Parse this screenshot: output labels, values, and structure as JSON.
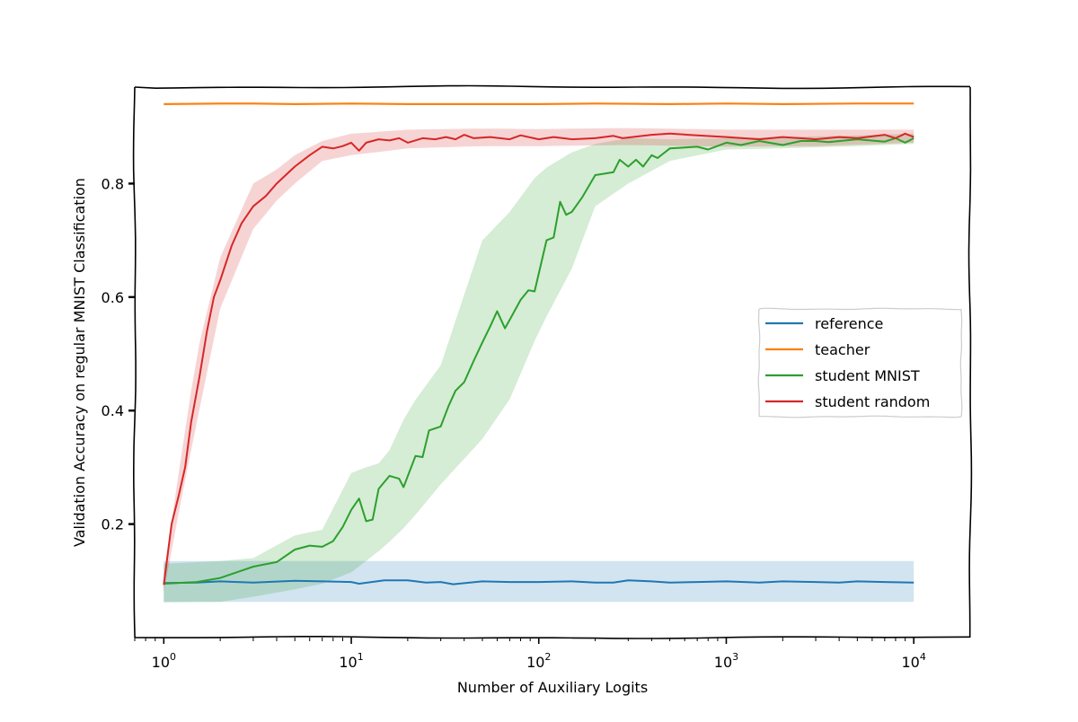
{
  "chart_data": {
    "type": "line",
    "title": "",
    "xlabel": "Number of Auxiliary Logits",
    "ylabel": "Validation Accuracy on regular MNIST Classification",
    "x_scale": "log",
    "xlim": [
      0.7,
      20000
    ],
    "ylim": [
      0.0,
      0.97
    ],
    "x_ticks": [
      1,
      10,
      100,
      1000,
      10000
    ],
    "x_tick_labels": [
      {
        "base": "10",
        "exp": "0"
      },
      {
        "base": "10",
        "exp": "1"
      },
      {
        "base": "10",
        "exp": "2"
      },
      {
        "base": "10",
        "exp": "3"
      },
      {
        "base": "10",
        "exp": "4"
      }
    ],
    "y_ticks": [
      0.2,
      0.4,
      0.6,
      0.8
    ],
    "y_tick_labels": [
      "0.2",
      "0.4",
      "0.6",
      "0.8"
    ],
    "grid": false,
    "legend_position": "center-right",
    "series": [
      {
        "name": "reference",
        "color": "#1f77b4",
        "band_opacity": 0.2,
        "points": [
          [
            1,
            0.096
          ],
          [
            1.5,
            0.097
          ],
          [
            2,
            0.099
          ],
          [
            3,
            0.097
          ],
          [
            5,
            0.1
          ],
          [
            7,
            0.099
          ],
          [
            10,
            0.098
          ],
          [
            11,
            0.095
          ],
          [
            15,
            0.101
          ],
          [
            20,
            0.101
          ],
          [
            25,
            0.097
          ],
          [
            30,
            0.098
          ],
          [
            35,
            0.094
          ],
          [
            50,
            0.099
          ],
          [
            70,
            0.098
          ],
          [
            100,
            0.098
          ],
          [
            150,
            0.099
          ],
          [
            200,
            0.097
          ],
          [
            250,
            0.097
          ],
          [
            300,
            0.101
          ],
          [
            400,
            0.099
          ],
          [
            500,
            0.097
          ],
          [
            700,
            0.098
          ],
          [
            1000,
            0.099
          ],
          [
            1500,
            0.097
          ],
          [
            2000,
            0.099
          ],
          [
            3000,
            0.098
          ],
          [
            4000,
            0.097
          ],
          [
            5000,
            0.099
          ],
          [
            7000,
            0.098
          ],
          [
            10000,
            0.097
          ]
        ],
        "lower": [
          [
            1,
            0.063
          ],
          [
            100,
            0.063
          ],
          [
            10000,
            0.063
          ]
        ],
        "upper": [
          [
            1,
            0.135
          ],
          [
            100,
            0.135
          ],
          [
            10000,
            0.135
          ]
        ]
      },
      {
        "name": "teacher",
        "color": "#ff7f0e",
        "band_opacity": 0.2,
        "points": [
          [
            1,
            0.94
          ],
          [
            2,
            0.941
          ],
          [
            3,
            0.941
          ],
          [
            5,
            0.94
          ],
          [
            10,
            0.941
          ],
          [
            20,
            0.94
          ],
          [
            50,
            0.94
          ],
          [
            100,
            0.94
          ],
          [
            200,
            0.941
          ],
          [
            500,
            0.94
          ],
          [
            1000,
            0.941
          ],
          [
            2000,
            0.94
          ],
          [
            5000,
            0.941
          ],
          [
            10000,
            0.941
          ]
        ],
        "lower": [
          [
            1,
            0.938
          ],
          [
            10000,
            0.939
          ]
        ],
        "upper": [
          [
            1,
            0.943
          ],
          [
            10000,
            0.943
          ]
        ]
      },
      {
        "name": "student MNIST",
        "color": "#2ca02c",
        "band_opacity": 0.2,
        "points": [
          [
            1,
            0.095
          ],
          [
            1.5,
            0.098
          ],
          [
            2,
            0.105
          ],
          [
            3,
            0.125
          ],
          [
            4,
            0.133
          ],
          [
            5,
            0.155
          ],
          [
            6,
            0.162
          ],
          [
            7,
            0.16
          ],
          [
            8,
            0.17
          ],
          [
            9,
            0.195
          ],
          [
            10,
            0.225
          ],
          [
            11,
            0.245
          ],
          [
            12,
            0.205
          ],
          [
            13,
            0.208
          ],
          [
            14,
            0.262
          ],
          [
            16,
            0.285
          ],
          [
            18,
            0.28
          ],
          [
            19,
            0.265
          ],
          [
            22,
            0.32
          ],
          [
            24,
            0.318
          ],
          [
            26,
            0.365
          ],
          [
            30,
            0.372
          ],
          [
            33,
            0.408
          ],
          [
            36,
            0.435
          ],
          [
            40,
            0.45
          ],
          [
            45,
            0.488
          ],
          [
            50,
            0.52
          ],
          [
            55,
            0.548
          ],
          [
            60,
            0.575
          ],
          [
            66,
            0.545
          ],
          [
            70,
            0.56
          ],
          [
            80,
            0.595
          ],
          [
            88,
            0.612
          ],
          [
            95,
            0.61
          ],
          [
            110,
            0.7
          ],
          [
            120,
            0.705
          ],
          [
            130,
            0.768
          ],
          [
            140,
            0.745
          ],
          [
            150,
            0.75
          ],
          [
            170,
            0.775
          ],
          [
            200,
            0.815
          ],
          [
            250,
            0.82
          ],
          [
            270,
            0.842
          ],
          [
            300,
            0.83
          ],
          [
            330,
            0.842
          ],
          [
            360,
            0.83
          ],
          [
            400,
            0.85
          ],
          [
            430,
            0.845
          ],
          [
            500,
            0.862
          ],
          [
            700,
            0.865
          ],
          [
            800,
            0.86
          ],
          [
            1000,
            0.872
          ],
          [
            1200,
            0.868
          ],
          [
            1500,
            0.875
          ],
          [
            2000,
            0.868
          ],
          [
            2500,
            0.875
          ],
          [
            3000,
            0.875
          ],
          [
            3500,
            0.873
          ],
          [
            5000,
            0.878
          ],
          [
            7000,
            0.874
          ],
          [
            8000,
            0.88
          ],
          [
            9000,
            0.872
          ],
          [
            10000,
            0.88
          ]
        ],
        "lower": [
          [
            1,
            0.062
          ],
          [
            2,
            0.063
          ],
          [
            3,
            0.072
          ],
          [
            5,
            0.085
          ],
          [
            7,
            0.095
          ],
          [
            10,
            0.115
          ],
          [
            12,
            0.135
          ],
          [
            15,
            0.16
          ],
          [
            20,
            0.2
          ],
          [
            30,
            0.27
          ],
          [
            50,
            0.35
          ],
          [
            70,
            0.42
          ],
          [
            100,
            0.54
          ],
          [
            150,
            0.65
          ],
          [
            200,
            0.76
          ],
          [
            300,
            0.8
          ],
          [
            500,
            0.84
          ],
          [
            1000,
            0.86
          ],
          [
            2000,
            0.862
          ],
          [
            5000,
            0.866
          ],
          [
            10000,
            0.87
          ]
        ],
        "upper": [
          [
            1,
            0.13
          ],
          [
            2,
            0.135
          ],
          [
            3,
            0.14
          ],
          [
            5,
            0.18
          ],
          [
            7,
            0.19
          ],
          [
            10,
            0.29
          ],
          [
            12,
            0.3
          ],
          [
            15,
            0.31
          ],
          [
            20,
            0.4
          ],
          [
            30,
            0.48
          ],
          [
            50,
            0.7
          ],
          [
            70,
            0.75
          ],
          [
            100,
            0.82
          ],
          [
            150,
            0.855
          ],
          [
            200,
            0.87
          ],
          [
            300,
            0.88
          ],
          [
            500,
            0.878
          ],
          [
            1000,
            0.88
          ],
          [
            2000,
            0.882
          ],
          [
            5000,
            0.885
          ],
          [
            10000,
            0.888
          ]
        ]
      },
      {
        "name": "student random",
        "color": "#d62728",
        "band_opacity": 0.2,
        "points": [
          [
            1,
            0.093
          ],
          [
            1.1,
            0.2
          ],
          [
            1.2,
            0.25
          ],
          [
            1.3,
            0.3
          ],
          [
            1.4,
            0.38
          ],
          [
            1.55,
            0.46
          ],
          [
            1.7,
            0.54
          ],
          [
            1.85,
            0.6
          ],
          [
            2,
            0.63
          ],
          [
            2.3,
            0.69
          ],
          [
            2.6,
            0.73
          ],
          [
            3,
            0.76
          ],
          [
            3.5,
            0.778
          ],
          [
            4,
            0.8
          ],
          [
            5,
            0.83
          ],
          [
            6,
            0.85
          ],
          [
            7,
            0.865
          ],
          [
            8,
            0.862
          ],
          [
            9,
            0.866
          ],
          [
            10,
            0.872
          ],
          [
            11,
            0.858
          ],
          [
            12,
            0.872
          ],
          [
            14,
            0.878
          ],
          [
            16,
            0.876
          ],
          [
            18,
            0.88
          ],
          [
            20,
            0.872
          ],
          [
            24,
            0.88
          ],
          [
            28,
            0.878
          ],
          [
            32,
            0.882
          ],
          [
            36,
            0.878
          ],
          [
            40,
            0.886
          ],
          [
            45,
            0.88
          ],
          [
            55,
            0.882
          ],
          [
            70,
            0.878
          ],
          [
            80,
            0.885
          ],
          [
            100,
            0.878
          ],
          [
            120,
            0.882
          ],
          [
            150,
            0.878
          ],
          [
            200,
            0.88
          ],
          [
            250,
            0.884
          ],
          [
            280,
            0.88
          ],
          [
            400,
            0.886
          ],
          [
            500,
            0.888
          ],
          [
            700,
            0.885
          ],
          [
            1000,
            0.882
          ],
          [
            1500,
            0.878
          ],
          [
            2000,
            0.882
          ],
          [
            3000,
            0.878
          ],
          [
            4000,
            0.882
          ],
          [
            5000,
            0.88
          ],
          [
            7000,
            0.886
          ],
          [
            8000,
            0.88
          ],
          [
            9000,
            0.888
          ],
          [
            10000,
            0.882
          ]
        ],
        "lower": [
          [
            1,
            0.08
          ],
          [
            1.2,
            0.22
          ],
          [
            1.5,
            0.38
          ],
          [
            2,
            0.58
          ],
          [
            3,
            0.72
          ],
          [
            4,
            0.77
          ],
          [
            5,
            0.8
          ],
          [
            7,
            0.84
          ],
          [
            10,
            0.85
          ],
          [
            20,
            0.862
          ],
          [
            50,
            0.866
          ],
          [
            100,
            0.866
          ],
          [
            300,
            0.868
          ],
          [
            1000,
            0.865
          ],
          [
            3000,
            0.866
          ],
          [
            10000,
            0.872
          ]
        ],
        "upper": [
          [
            1,
            0.11
          ],
          [
            1.2,
            0.29
          ],
          [
            1.5,
            0.5
          ],
          [
            2,
            0.67
          ],
          [
            3,
            0.8
          ],
          [
            4,
            0.825
          ],
          [
            5,
            0.85
          ],
          [
            7,
            0.875
          ],
          [
            10,
            0.888
          ],
          [
            20,
            0.895
          ],
          [
            50,
            0.897
          ],
          [
            100,
            0.896
          ],
          [
            300,
            0.898
          ],
          [
            1000,
            0.895
          ],
          [
            3000,
            0.895
          ],
          [
            10000,
            0.895
          ]
        ]
      }
    ]
  }
}
